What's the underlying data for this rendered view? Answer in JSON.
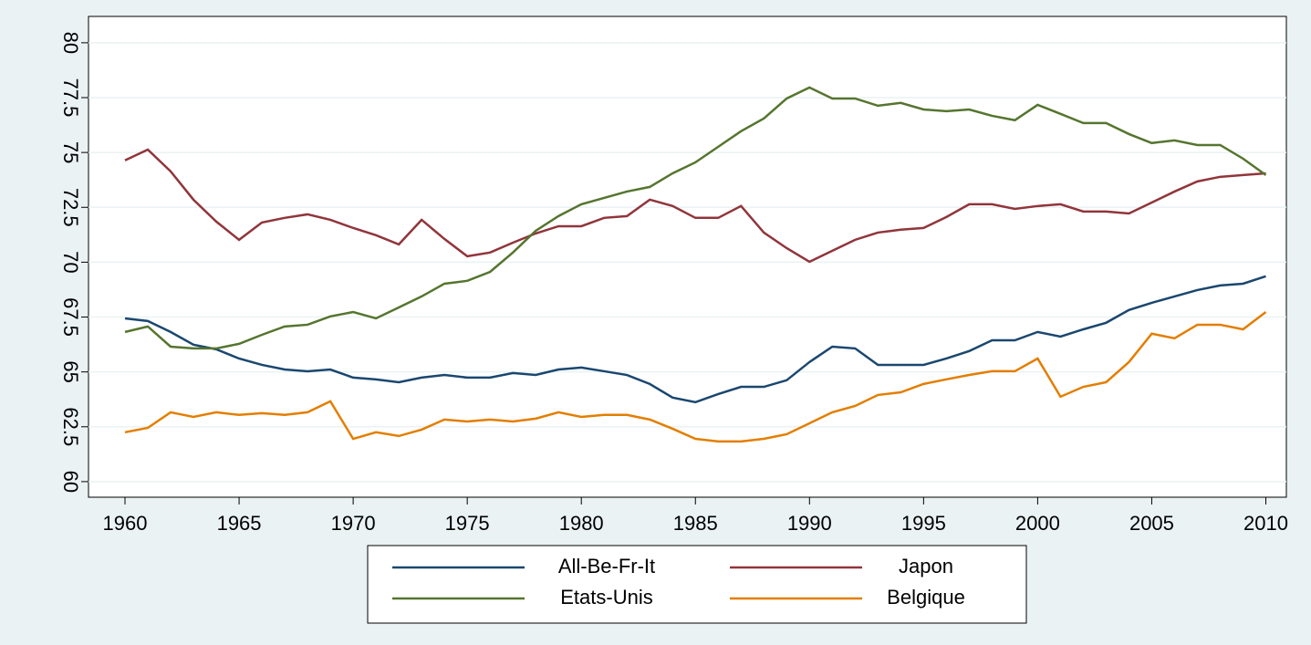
{
  "chart_data": {
    "type": "line",
    "x": [
      1960,
      1961,
      1962,
      1963,
      1964,
      1965,
      1966,
      1967,
      1968,
      1969,
      1970,
      1971,
      1972,
      1973,
      1974,
      1975,
      1976,
      1977,
      1978,
      1979,
      1980,
      1981,
      1982,
      1983,
      1984,
      1985,
      1986,
      1987,
      1988,
      1989,
      1990,
      1991,
      1992,
      1993,
      1994,
      1995,
      1996,
      1997,
      1998,
      1999,
      2000,
      2001,
      2002,
      2003,
      2004,
      2005,
      2006,
      2007,
      2008,
      2009,
      2010
    ],
    "series": [
      {
        "name": "All-Be-Fr-It",
        "color": "#1a476f",
        "values": [
          67.44,
          67.32,
          66.82,
          66.24,
          66.03,
          65.61,
          65.32,
          65.11,
          65.03,
          65.11,
          64.74,
          64.66,
          64.53,
          64.74,
          64.86,
          64.74,
          64.74,
          64.95,
          64.86,
          65.11,
          65.2,
          65.03,
          64.86,
          64.45,
          63.83,
          63.62,
          63.99,
          64.32,
          64.32,
          64.62,
          65.45,
          66.15,
          66.07,
          65.32,
          65.32,
          65.32,
          65.61,
          65.95,
          66.44,
          66.44,
          66.82,
          66.61,
          66.94,
          67.24,
          67.82,
          68.15,
          68.44,
          68.73,
          68.94,
          69.02,
          69.36
        ]
      },
      {
        "name": "Japon",
        "color": "#90353b",
        "values": [
          74.64,
          75.13,
          74.14,
          72.85,
          71.85,
          71.02,
          71.81,
          72.02,
          72.18,
          71.93,
          71.56,
          71.23,
          70.81,
          71.93,
          71.06,
          70.27,
          70.44,
          70.89,
          71.31,
          71.64,
          71.64,
          72.02,
          72.1,
          72.85,
          72.56,
          72.02,
          72.02,
          72.56,
          71.35,
          70.64,
          70.02,
          70.52,
          71.02,
          71.35,
          71.48,
          71.56,
          72.06,
          72.64,
          72.64,
          72.43,
          72.56,
          72.64,
          72.31,
          72.31,
          72.22,
          72.72,
          73.22,
          73.68,
          73.89,
          73.97,
          74.05
        ]
      },
      {
        "name": "Etats-Unis",
        "color": "#55752f",
        "values": [
          66.82,
          67.07,
          66.15,
          66.07,
          66.07,
          66.28,
          66.69,
          67.07,
          67.15,
          67.53,
          67.73,
          67.44,
          67.94,
          68.44,
          69.02,
          69.15,
          69.56,
          70.44,
          71.43,
          72.1,
          72.64,
          72.93,
          73.22,
          73.43,
          74.05,
          74.55,
          75.26,
          75.97,
          76.55,
          77.46,
          77.96,
          77.46,
          77.46,
          77.13,
          77.26,
          76.96,
          76.88,
          76.96,
          76.67,
          76.47,
          77.17,
          76.76,
          76.34,
          76.34,
          75.84,
          75.43,
          75.55,
          75.34,
          75.34,
          74.72,
          73.97
        ]
      },
      {
        "name": "Belgique",
        "color": "#e37e00",
        "values": [
          62.25,
          62.45,
          63.16,
          62.95,
          63.16,
          63.04,
          63.12,
          63.04,
          63.16,
          63.66,
          61.95,
          62.25,
          62.08,
          62.37,
          62.83,
          62.74,
          62.83,
          62.74,
          62.87,
          63.16,
          62.95,
          63.04,
          63.04,
          62.83,
          62.41,
          61.95,
          61.83,
          61.83,
          61.95,
          62.16,
          62.66,
          63.16,
          63.45,
          63.95,
          64.07,
          64.45,
          64.66,
          64.86,
          65.03,
          65.03,
          65.61,
          63.87,
          64.32,
          64.53,
          65.45,
          66.74,
          66.53,
          67.15,
          67.15,
          66.94,
          67.73
        ]
      }
    ],
    "xlim": [
      1958.4,
      2010.9
    ],
    "xticks": [
      1960,
      1965,
      1970,
      1975,
      1980,
      1985,
      1990,
      1995,
      2000,
      2005,
      2010
    ],
    "ylim": [
      59.29,
      81.2
    ],
    "yticks": [
      60,
      62.5,
      65,
      67.5,
      70,
      72.5,
      75,
      77.5,
      80
    ],
    "grid": true
  }
}
